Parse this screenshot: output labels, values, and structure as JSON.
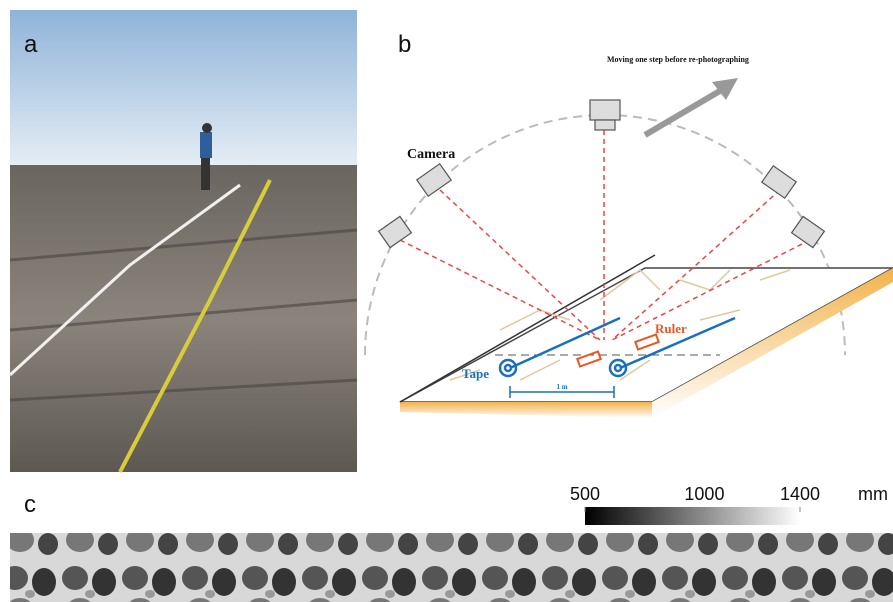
{
  "panels": {
    "a": {
      "label": "a"
    },
    "b": {
      "label": "b",
      "camera": "Camera",
      "caption": "Moving one step before re-photographing",
      "tape": "Tape",
      "ruler": "Ruler",
      "scale": "1 m"
    },
    "c": {
      "label": "c",
      "colorbar": {
        "lim": [
          500,
          1400
        ],
        "ticks": [
          500,
          1000,
          1400
        ],
        "unit": "mm"
      }
    }
  }
}
